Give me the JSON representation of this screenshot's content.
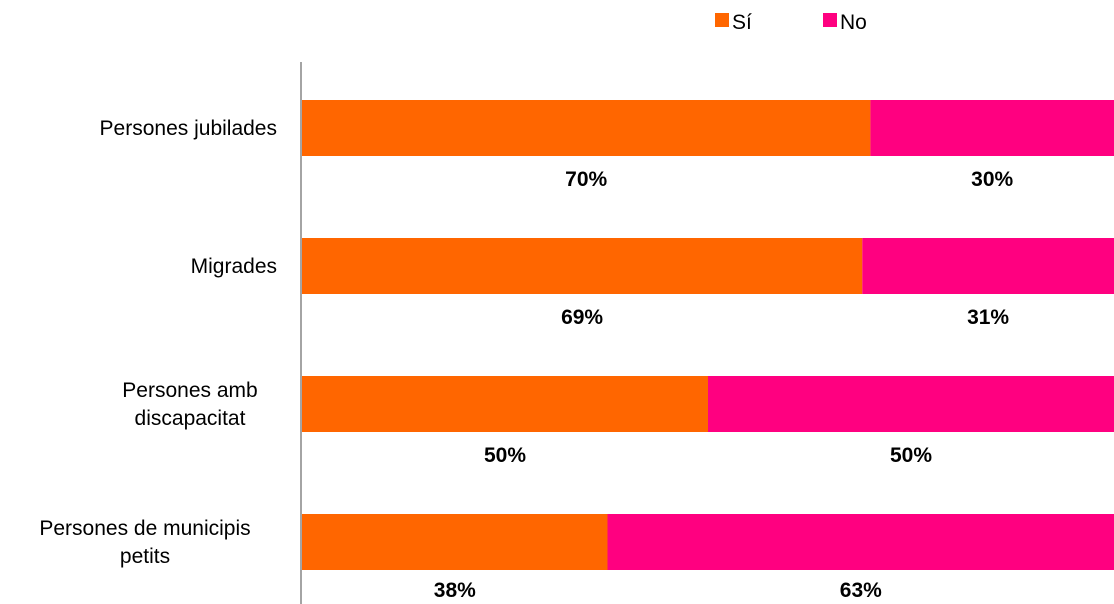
{
  "chart_data": {
    "type": "bar",
    "orientation": "horizontal",
    "stacked": true,
    "percent_stacked": true,
    "categories": [
      [
        "Persones jubilades"
      ],
      [
        "Migrades"
      ],
      [
        "Persones amb",
        "discapacitat"
      ],
      [
        "Persones de municipis",
        "petits"
      ]
    ],
    "series": [
      {
        "name": "Sí",
        "color": "#ff6600",
        "values": [
          70,
          69,
          50,
          38
        ],
        "labels": [
          "70%",
          "69%",
          "50%",
          "38%"
        ]
      },
      {
        "name": "No",
        "color": "#ff0080",
        "values": [
          30,
          31,
          50,
          63
        ],
        "labels": [
          "30%",
          "31%",
          "50%",
          "63%"
        ]
      }
    ],
    "xlim": [
      0,
      100
    ],
    "grid": false,
    "legend_position": "top",
    "xlabel": "",
    "ylabel": "",
    "title": ""
  }
}
